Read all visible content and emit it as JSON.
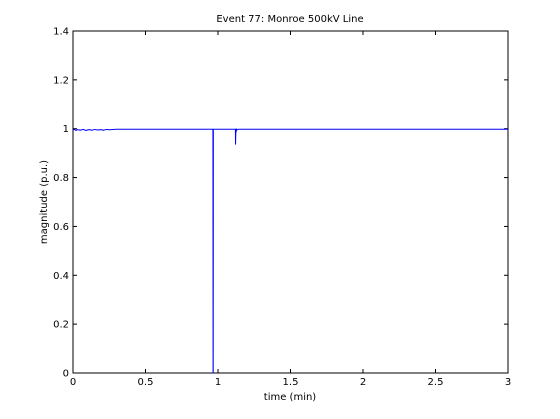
{
  "chart_data": {
    "type": "line",
    "title": "Event 77: Monroe 500kV Line",
    "xlabel": "time (min)",
    "ylabel": "magnitude (p.u.)",
    "xlim": [
      0,
      3
    ],
    "ylim": [
      0,
      1.4
    ],
    "xticks": [
      0,
      0.5,
      1,
      1.5,
      2,
      2.5,
      3
    ],
    "xtick_labels": [
      "0",
      "0.5",
      "1",
      "1.5",
      "2",
      "2.5",
      "3"
    ],
    "yticks": [
      0,
      0.2,
      0.4,
      0.6,
      0.8,
      1,
      1.2,
      1.4
    ],
    "ytick_labels": [
      "0",
      "0.2",
      "0.4",
      "0.6",
      "0.8",
      "1",
      "1.2",
      "1.4"
    ],
    "grid": false,
    "series": [
      {
        "color": "#0000ff",
        "x": [
          0,
          0.01,
          0.02,
          0.03,
          0.05,
          0.07,
          0.09,
          0.11,
          0.13,
          0.15,
          0.17,
          0.19,
          0.21,
          0.23,
          0.25,
          0.3,
          0.5,
          0.7,
          0.9,
          0.965,
          0.966,
          0.967,
          0.968,
          0.975,
          1.0,
          1.1,
          1.12,
          1.121,
          1.123,
          1.125,
          1.127,
          1.13,
          1.14,
          1.2,
          1.5,
          2.0,
          2.5,
          3.0
        ],
        "y": [
          0.995,
          0.997,
          0.993,
          0.996,
          0.994,
          0.997,
          0.993,
          0.996,
          0.994,
          0.997,
          0.995,
          0.996,
          0.994,
          0.997,
          0.996,
          0.998,
          0.998,
          0.998,
          0.998,
          0.998,
          0.0,
          0.0,
          0.998,
          0.998,
          0.998,
          0.998,
          0.998,
          0.935,
          0.992,
          0.985,
          1.0,
          0.995,
          0.998,
          0.998,
          0.998,
          0.998,
          0.998,
          0.998
        ]
      }
    ]
  }
}
